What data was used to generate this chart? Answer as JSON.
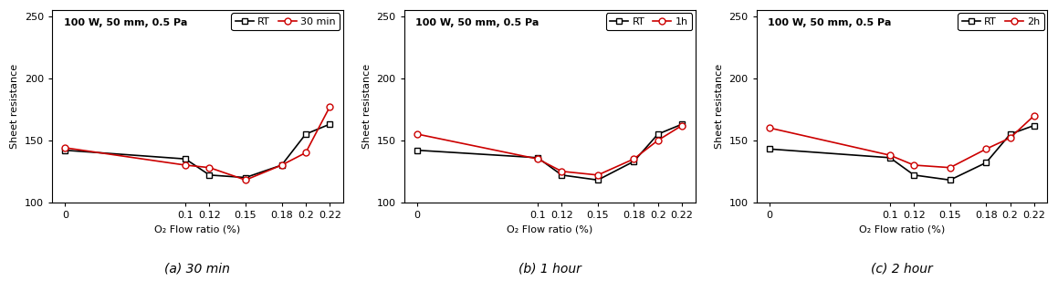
{
  "x": [
    0,
    0.1,
    0.12,
    0.15,
    0.18,
    0.2,
    0.22
  ],
  "xlabel": "O₂ Flow ratio (%)",
  "ylabel": "Sheet resistance",
  "annotation": "100 W, 50 mm, 0.5 Pa",
  "ylim": [
    100,
    255
  ],
  "yticks": [
    100,
    150,
    200,
    250
  ],
  "xtick_labels": [
    "0",
    "0.1",
    "0.12",
    "0.15",
    "0.18",
    "0.2",
    "0.22"
  ],
  "panels": [
    {
      "caption": "(a) 30 min",
      "legend_label2": "30 min",
      "rt_values": [
        142,
        135,
        122,
        120,
        130,
        155,
        163
      ],
      "annealed_values": [
        144,
        130,
        128,
        118,
        130,
        140,
        177
      ]
    },
    {
      "caption": "(b) 1 hour",
      "legend_label2": "1h",
      "rt_values": [
        142,
        136,
        122,
        118,
        133,
        155,
        163
      ],
      "annealed_values": [
        155,
        135,
        125,
        122,
        135,
        150,
        162
      ]
    },
    {
      "caption": "(c) 2 hour",
      "legend_label2": "2h",
      "rt_values": [
        143,
        136,
        122,
        118,
        132,
        155,
        162
      ],
      "annealed_values": [
        160,
        138,
        130,
        128,
        143,
        152,
        170
      ]
    }
  ],
  "rt_color": "#000000",
  "annealed_color": "#cc0000",
  "rt_marker": "s",
  "annealed_marker": "o",
  "linewidth": 1.2,
  "markersize": 5,
  "font_size_label": 8,
  "font_size_tick": 8,
  "font_size_legend": 8,
  "font_size_annotation": 8,
  "caption_fontsize": 10,
  "plot_bg_color": "#ffffff",
  "fig_bg_color": "#ffffff"
}
